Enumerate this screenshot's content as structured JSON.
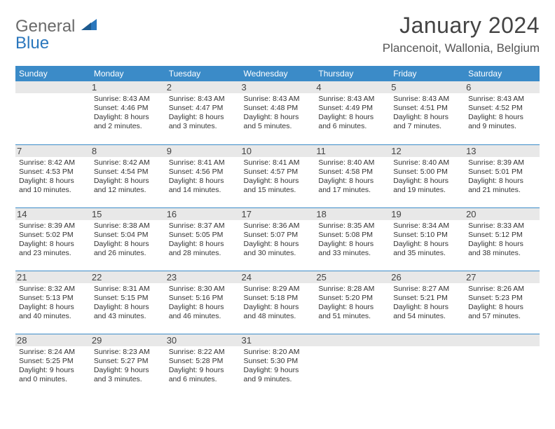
{
  "logo": {
    "word1": "General",
    "word2": "Blue",
    "word1_color": "#6a6a6a",
    "word2_color": "#2a77bd",
    "icon_color": "#2a77bd"
  },
  "title": "January 2024",
  "location": "Plancenoit, Wallonia, Belgium",
  "daynames": [
    "Sunday",
    "Monday",
    "Tuesday",
    "Wednesday",
    "Thursday",
    "Friday",
    "Saturday"
  ],
  "colors": {
    "header_bg": "#3b8bc8",
    "header_fg": "#ffffff",
    "row_divider": "#3b8bc8",
    "daynum_bg": "#e8e8e8",
    "text": "#333333",
    "title_color": "#444444"
  },
  "weeks": [
    [
      {
        "n": "",
        "sr": "",
        "ss": "",
        "dl": ""
      },
      {
        "n": "1",
        "sr": "Sunrise: 8:43 AM",
        "ss": "Sunset: 4:46 PM",
        "dl": "Daylight: 8 hours and 2 minutes."
      },
      {
        "n": "2",
        "sr": "Sunrise: 8:43 AM",
        "ss": "Sunset: 4:47 PM",
        "dl": "Daylight: 8 hours and 3 minutes."
      },
      {
        "n": "3",
        "sr": "Sunrise: 8:43 AM",
        "ss": "Sunset: 4:48 PM",
        "dl": "Daylight: 8 hours and 5 minutes."
      },
      {
        "n": "4",
        "sr": "Sunrise: 8:43 AM",
        "ss": "Sunset: 4:49 PM",
        "dl": "Daylight: 8 hours and 6 minutes."
      },
      {
        "n": "5",
        "sr": "Sunrise: 8:43 AM",
        "ss": "Sunset: 4:51 PM",
        "dl": "Daylight: 8 hours and 7 minutes."
      },
      {
        "n": "6",
        "sr": "Sunrise: 8:43 AM",
        "ss": "Sunset: 4:52 PM",
        "dl": "Daylight: 8 hours and 9 minutes."
      }
    ],
    [
      {
        "n": "7",
        "sr": "Sunrise: 8:42 AM",
        "ss": "Sunset: 4:53 PM",
        "dl": "Daylight: 8 hours and 10 minutes."
      },
      {
        "n": "8",
        "sr": "Sunrise: 8:42 AM",
        "ss": "Sunset: 4:54 PM",
        "dl": "Daylight: 8 hours and 12 minutes."
      },
      {
        "n": "9",
        "sr": "Sunrise: 8:41 AM",
        "ss": "Sunset: 4:56 PM",
        "dl": "Daylight: 8 hours and 14 minutes."
      },
      {
        "n": "10",
        "sr": "Sunrise: 8:41 AM",
        "ss": "Sunset: 4:57 PM",
        "dl": "Daylight: 8 hours and 15 minutes."
      },
      {
        "n": "11",
        "sr": "Sunrise: 8:40 AM",
        "ss": "Sunset: 4:58 PM",
        "dl": "Daylight: 8 hours and 17 minutes."
      },
      {
        "n": "12",
        "sr": "Sunrise: 8:40 AM",
        "ss": "Sunset: 5:00 PM",
        "dl": "Daylight: 8 hours and 19 minutes."
      },
      {
        "n": "13",
        "sr": "Sunrise: 8:39 AM",
        "ss": "Sunset: 5:01 PM",
        "dl": "Daylight: 8 hours and 21 minutes."
      }
    ],
    [
      {
        "n": "14",
        "sr": "Sunrise: 8:39 AM",
        "ss": "Sunset: 5:02 PM",
        "dl": "Daylight: 8 hours and 23 minutes."
      },
      {
        "n": "15",
        "sr": "Sunrise: 8:38 AM",
        "ss": "Sunset: 5:04 PM",
        "dl": "Daylight: 8 hours and 26 minutes."
      },
      {
        "n": "16",
        "sr": "Sunrise: 8:37 AM",
        "ss": "Sunset: 5:05 PM",
        "dl": "Daylight: 8 hours and 28 minutes."
      },
      {
        "n": "17",
        "sr": "Sunrise: 8:36 AM",
        "ss": "Sunset: 5:07 PM",
        "dl": "Daylight: 8 hours and 30 minutes."
      },
      {
        "n": "18",
        "sr": "Sunrise: 8:35 AM",
        "ss": "Sunset: 5:08 PM",
        "dl": "Daylight: 8 hours and 33 minutes."
      },
      {
        "n": "19",
        "sr": "Sunrise: 8:34 AM",
        "ss": "Sunset: 5:10 PM",
        "dl": "Daylight: 8 hours and 35 minutes."
      },
      {
        "n": "20",
        "sr": "Sunrise: 8:33 AM",
        "ss": "Sunset: 5:12 PM",
        "dl": "Daylight: 8 hours and 38 minutes."
      }
    ],
    [
      {
        "n": "21",
        "sr": "Sunrise: 8:32 AM",
        "ss": "Sunset: 5:13 PM",
        "dl": "Daylight: 8 hours and 40 minutes."
      },
      {
        "n": "22",
        "sr": "Sunrise: 8:31 AM",
        "ss": "Sunset: 5:15 PM",
        "dl": "Daylight: 8 hours and 43 minutes."
      },
      {
        "n": "23",
        "sr": "Sunrise: 8:30 AM",
        "ss": "Sunset: 5:16 PM",
        "dl": "Daylight: 8 hours and 46 minutes."
      },
      {
        "n": "24",
        "sr": "Sunrise: 8:29 AM",
        "ss": "Sunset: 5:18 PM",
        "dl": "Daylight: 8 hours and 48 minutes."
      },
      {
        "n": "25",
        "sr": "Sunrise: 8:28 AM",
        "ss": "Sunset: 5:20 PM",
        "dl": "Daylight: 8 hours and 51 minutes."
      },
      {
        "n": "26",
        "sr": "Sunrise: 8:27 AM",
        "ss": "Sunset: 5:21 PM",
        "dl": "Daylight: 8 hours and 54 minutes."
      },
      {
        "n": "27",
        "sr": "Sunrise: 8:26 AM",
        "ss": "Sunset: 5:23 PM",
        "dl": "Daylight: 8 hours and 57 minutes."
      }
    ],
    [
      {
        "n": "28",
        "sr": "Sunrise: 8:24 AM",
        "ss": "Sunset: 5:25 PM",
        "dl": "Daylight: 9 hours and 0 minutes."
      },
      {
        "n": "29",
        "sr": "Sunrise: 8:23 AM",
        "ss": "Sunset: 5:27 PM",
        "dl": "Daylight: 9 hours and 3 minutes."
      },
      {
        "n": "30",
        "sr": "Sunrise: 8:22 AM",
        "ss": "Sunset: 5:28 PM",
        "dl": "Daylight: 9 hours and 6 minutes."
      },
      {
        "n": "31",
        "sr": "Sunrise: 8:20 AM",
        "ss": "Sunset: 5:30 PM",
        "dl": "Daylight: 9 hours and 9 minutes."
      },
      {
        "n": "",
        "sr": "",
        "ss": "",
        "dl": ""
      },
      {
        "n": "",
        "sr": "",
        "ss": "",
        "dl": ""
      },
      {
        "n": "",
        "sr": "",
        "ss": "",
        "dl": ""
      }
    ]
  ]
}
